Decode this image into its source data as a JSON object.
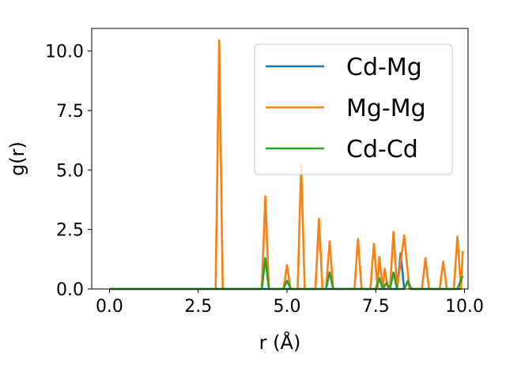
{
  "chart_data": {
    "type": "line",
    "xlabel": "r (Å)",
    "ylabel": "g(r)",
    "xlim": [
      -0.5,
      10.1
    ],
    "ylim": [
      0.0,
      10.95
    ],
    "xticks": [
      "0.0",
      "2.5",
      "5.0",
      "7.5",
      "10.0"
    ],
    "yticks": [
      "0.0",
      "2.5",
      "5.0",
      "7.5",
      "10.0"
    ],
    "grid": false,
    "legend_position": "top-right",
    "series": [
      {
        "name": "Cd-Mg",
        "color": "#1f77b4",
        "points": [
          [
            0,
            0
          ],
          [
            8.1,
            0
          ],
          [
            8.2,
            1.5
          ],
          [
            8.3,
            0
          ],
          [
            8.4,
            0.3
          ],
          [
            8.5,
            0
          ],
          [
            9.9,
            0
          ]
        ]
      },
      {
        "name": "Mg-Mg",
        "color": "#ff7f0e",
        "points": [
          [
            0,
            0
          ],
          [
            2.99,
            0
          ],
          [
            3.09,
            10.45
          ],
          [
            3.19,
            0
          ],
          [
            4.29,
            0
          ],
          [
            4.39,
            3.9
          ],
          [
            4.49,
            0
          ],
          [
            4.9,
            0
          ],
          [
            5.0,
            1.0
          ],
          [
            5.1,
            0
          ],
          [
            5.3,
            0
          ],
          [
            5.4,
            5.25
          ],
          [
            5.5,
            0
          ],
          [
            5.8,
            0
          ],
          [
            5.9,
            2.95
          ],
          [
            6.0,
            0
          ],
          [
            6.1,
            0
          ],
          [
            6.2,
            2.0
          ],
          [
            6.3,
            0
          ],
          [
            6.9,
            0
          ],
          [
            7.0,
            2.1
          ],
          [
            7.1,
            0
          ],
          [
            7.35,
            0
          ],
          [
            7.45,
            1.9
          ],
          [
            7.55,
            0
          ],
          [
            7.6,
            1.35
          ],
          [
            7.7,
            0
          ],
          [
            7.75,
            0.85
          ],
          [
            7.85,
            0
          ],
          [
            7.9,
            0
          ],
          [
            8.0,
            2.4
          ],
          [
            8.1,
            0
          ],
          [
            8.3,
            2.25
          ],
          [
            8.45,
            0
          ],
          [
            8.8,
            0
          ],
          [
            8.9,
            1.3
          ],
          [
            9.0,
            0
          ],
          [
            9.3,
            0
          ],
          [
            9.4,
            1.15
          ],
          [
            9.5,
            0
          ],
          [
            9.7,
            0
          ],
          [
            9.8,
            2.2
          ],
          [
            9.9,
            0
          ],
          [
            9.95,
            1.6
          ]
        ]
      },
      {
        "name": "Cd-Cd",
        "color": "#2ca02c",
        "points": [
          [
            0,
            0
          ],
          [
            4.29,
            0
          ],
          [
            4.39,
            1.3
          ],
          [
            4.49,
            0
          ],
          [
            4.9,
            0
          ],
          [
            5.0,
            0.35
          ],
          [
            5.1,
            0
          ],
          [
            6.1,
            0
          ],
          [
            6.2,
            0.7
          ],
          [
            6.3,
            0
          ],
          [
            7.5,
            0
          ],
          [
            7.6,
            0.45
          ],
          [
            7.7,
            0
          ],
          [
            7.8,
            0.25
          ],
          [
            7.9,
            0
          ],
          [
            8.0,
            0.7
          ],
          [
            8.1,
            0
          ],
          [
            8.3,
            0
          ],
          [
            8.4,
            0.35
          ],
          [
            8.5,
            0
          ],
          [
            9.8,
            0
          ],
          [
            9.95,
            0.55
          ]
        ]
      }
    ]
  }
}
